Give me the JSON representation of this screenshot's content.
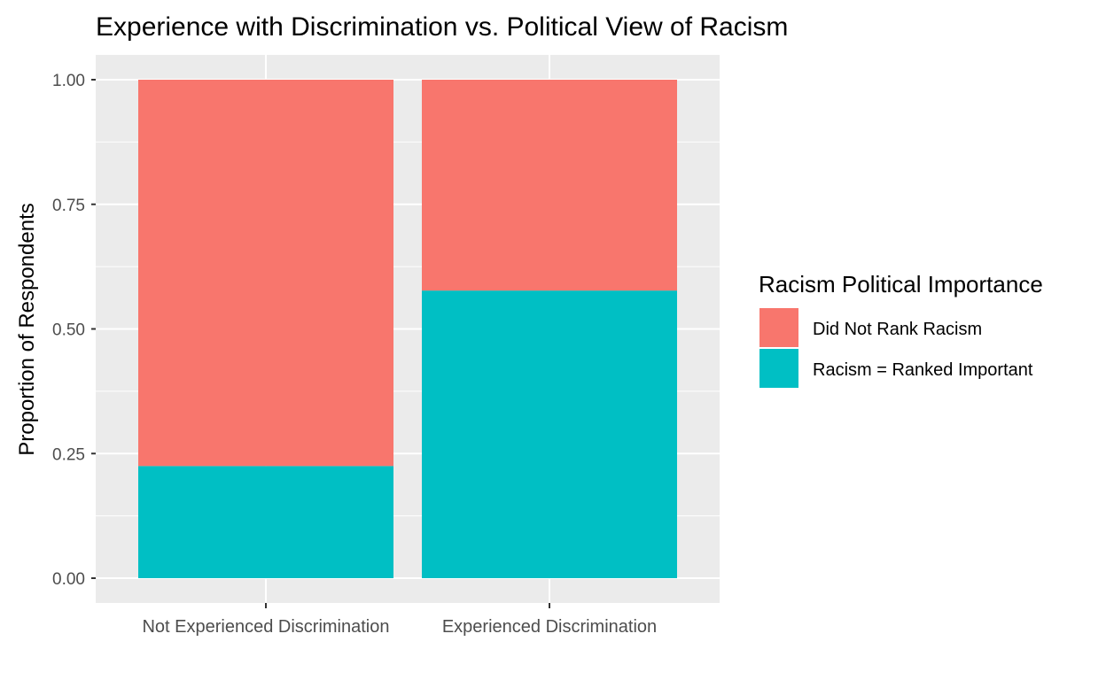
{
  "chart_data": {
    "type": "bar",
    "stacked": true,
    "title": "Experience with Discrimination vs. Political View of Racism",
    "xlabel": "",
    "ylabel": "Proportion of Respondents",
    "categories": [
      "Not Experienced Discrimination",
      "Experienced Discrimination"
    ],
    "ylim": [
      0,
      1
    ],
    "yticks": [
      0,
      0.25,
      0.5,
      0.75,
      1
    ],
    "ytick_labels": [
      "0.00",
      "0.25",
      "0.50",
      "0.75",
      "1.00"
    ],
    "series": [
      {
        "name": "Racism = Ranked Important",
        "values": [
          0.225,
          0.577
        ],
        "color": "#00BFC4"
      },
      {
        "name": "Did Not Rank Racism",
        "values": [
          0.775,
          0.423
        ],
        "color": "#F8766D"
      }
    ],
    "legend": {
      "title": "Racism Political Importance",
      "position": "right",
      "order": [
        "Did Not Rank Racism",
        "Racism = Ranked Important"
      ]
    },
    "grid": true,
    "panel_background": "#EBEBEB",
    "grid_color": "#FFFFFF"
  }
}
